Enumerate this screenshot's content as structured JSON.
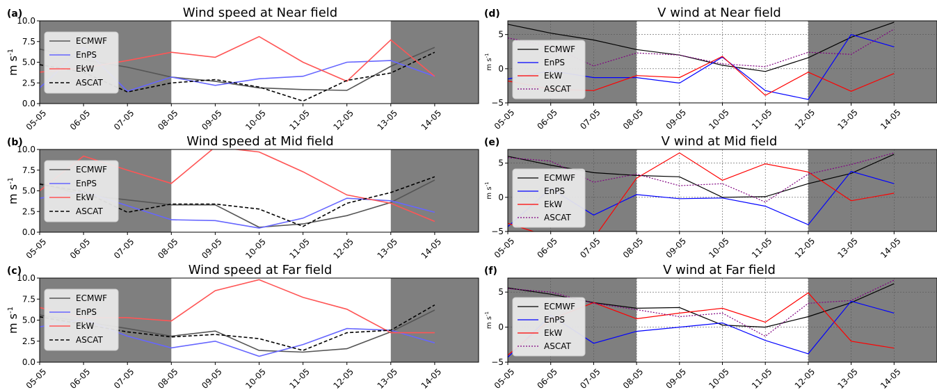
{
  "chart_data": [
    {
      "type": "line",
      "panel_label": "(a)",
      "title": "Wind speed at Near field",
      "ylabel_main": "m s",
      "ylabel_sup": "-1",
      "ylabel_style": "large",
      "ylim": [
        0,
        10
      ],
      "yticks": [
        "0.0",
        "2.5",
        "5.0",
        "7.5",
        "10.0"
      ],
      "ytick_values": [
        0,
        2.5,
        5,
        7.5,
        10
      ],
      "categories": [
        "05-05",
        "06-05",
        "07-05",
        "08-05",
        "09-05",
        "10-05",
        "11-05",
        "12-05",
        "13-05",
        "14-05"
      ],
      "shaded_ranges": [
        [
          0,
          3
        ],
        [
          8,
          10
        ]
      ],
      "grid": false,
      "legend_position": "upper-left",
      "series": [
        {
          "name": "ECMWF",
          "color": "#000000",
          "dashed": false,
          "values": [
            6.6,
            5.3,
            4.4,
            3.2,
            2.7,
            1.9,
            1.7,
            1.6,
            4.5,
            6.8
          ]
        },
        {
          "name": "EnPS",
          "color": "#0000ff",
          "dashed": false,
          "values": [
            1.9,
            6.8,
            1.5,
            3.2,
            2.2,
            3.0,
            3.3,
            5.0,
            5.2,
            3.3
          ]
        },
        {
          "name": "EkW",
          "color": "#ff0000",
          "dashed": false,
          "values": [
            3.8,
            4.3,
            5.2,
            6.2,
            5.6,
            8.1,
            5.0,
            2.7,
            7.7,
            3.3
          ]
        },
        {
          "name": "ASCAT",
          "color": "#000000",
          "dashed": true,
          "values": [
            4.7,
            3.8,
            1.4,
            2.5,
            2.9,
            2.0,
            0.3,
            2.8,
            3.7,
            6.2
          ]
        }
      ]
    },
    {
      "type": "line",
      "panel_label": "(b)",
      "title": "Wind speed at Mid field",
      "ylabel_main": "m s",
      "ylabel_sup": "-1",
      "ylabel_style": "large",
      "ylim": [
        0,
        10
      ],
      "yticks": [
        "0.0",
        "2.5",
        "5.0",
        "7.5",
        "10.0"
      ],
      "ytick_values": [
        0,
        2.5,
        5,
        7.5,
        10
      ],
      "categories": [
        "05-05",
        "06-05",
        "07-05",
        "08-05",
        "09-05",
        "10-05",
        "11-05",
        "12-05",
        "13-05",
        "14-05"
      ],
      "shaded_ranges": [
        [
          0,
          3
        ],
        [
          8,
          10
        ]
      ],
      "grid": false,
      "legend_position": "upper-left",
      "series": [
        {
          "name": "ECMWF",
          "color": "#000000",
          "dashed": false,
          "values": [
            5.9,
            4.5,
            3.9,
            3.3,
            3.3,
            0.6,
            1.0,
            2.0,
            3.6,
            6.3
          ]
        },
        {
          "name": "EnPS",
          "color": "#0000ff",
          "dashed": false,
          "values": [
            4.1,
            4.9,
            3.2,
            1.5,
            1.4,
            0.5,
            1.7,
            4.1,
            3.8,
            2.4
          ]
        },
        {
          "name": "EkW",
          "color": "#ff0000",
          "dashed": false,
          "values": [
            5.0,
            9.2,
            7.5,
            5.9,
            10.3,
            9.7,
            7.3,
            4.5,
            3.5,
            1.3
          ]
        },
        {
          "name": "ASCAT",
          "color": "#000000",
          "dashed": true,
          "values": [
            5.8,
            4.9,
            2.4,
            3.4,
            3.4,
            2.8,
            0.7,
            3.5,
            4.8,
            6.7
          ]
        }
      ]
    },
    {
      "type": "line",
      "panel_label": "(c)",
      "title": "Wind speed at Far field",
      "ylabel_main": "m s",
      "ylabel_sup": "-1",
      "ylabel_style": "large",
      "ylim": [
        0,
        10
      ],
      "yticks": [
        "0.0",
        "2.5",
        "5.0",
        "7.5",
        "10.0"
      ],
      "ytick_values": [
        0,
        2.5,
        5,
        7.5,
        10
      ],
      "categories": [
        "05-05",
        "06-05",
        "07-05",
        "08-05",
        "09-05",
        "10-05",
        "11-05",
        "12-05",
        "13-05",
        "14-05"
      ],
      "shaded_ranges": [
        [
          0,
          3
        ],
        [
          8,
          10
        ]
      ],
      "grid": false,
      "legend_position": "upper-left",
      "series": [
        {
          "name": "ECMWF",
          "color": "#000000",
          "dashed": false,
          "values": [
            5.6,
            4.8,
            4.0,
            3.1,
            3.7,
            1.4,
            1.2,
            1.6,
            3.6,
            6.2
          ]
        },
        {
          "name": "EnPS",
          "color": "#0000ff",
          "dashed": false,
          "values": [
            4.2,
            5.1,
            3.1,
            1.7,
            2.5,
            0.7,
            2.1,
            4.0,
            3.8,
            2.3
          ]
        },
        {
          "name": "EkW",
          "color": "#ff0000",
          "dashed": false,
          "values": [
            6.5,
            5.3,
            5.3,
            4.9,
            8.5,
            9.8,
            7.7,
            6.3,
            3.5,
            3.5
          ]
        },
        {
          "name": "ASCAT",
          "color": "#000000",
          "dashed": true,
          "values": [
            5.4,
            4.5,
            3.6,
            3.0,
            3.3,
            2.8,
            1.4,
            3.5,
            3.8,
            6.8
          ]
        }
      ]
    },
    {
      "type": "line",
      "panel_label": "(d)",
      "title": "V wind at Near field",
      "ylabel_main": "m s",
      "ylabel_sup": "-1",
      "ylabel_style": "small",
      "ylim": [
        -5,
        7
      ],
      "yticks": [
        "−5",
        "0",
        "5"
      ],
      "ytick_values": [
        -5,
        0,
        5
      ],
      "categories": [
        "05-05",
        "06-05",
        "07-05",
        "08-05",
        "09-05",
        "10-05",
        "11-05",
        "12-05",
        "13-05",
        "14-05"
      ],
      "shaded_ranges": [
        [
          0,
          3
        ],
        [
          7,
          10
        ]
      ],
      "grid": true,
      "legend_position": "upper-left",
      "series": [
        {
          "name": "ECMWF",
          "color": "#000000",
          "dashed": false,
          "values": [
            6.5,
            5.2,
            4.2,
            2.8,
            2.0,
            0.5,
            -0.4,
            1.6,
            4.6,
            6.8
          ]
        },
        {
          "name": "EnPS",
          "color": "#0000ff",
          "dashed": false,
          "values": [
            -1.5,
            -0.3,
            -1.3,
            -1.3,
            -2.1,
            1.7,
            -3.2,
            -4.5,
            5.0,
            3.2
          ]
        },
        {
          "name": "EkW",
          "color": "#ff0000",
          "dashed": false,
          "values": [
            -1.8,
            -3.0,
            -3.2,
            -1.0,
            -1.3,
            1.8,
            -3.9,
            -0.5,
            -3.3,
            -0.7
          ]
        },
        {
          "name": "ASCAT",
          "color": "#800080",
          "dashed": true,
          "values": [
            4.5,
            3.3,
            0.4,
            2.3,
            2.0,
            0.7,
            0.3,
            2.4,
            2.1,
            5.8
          ]
        }
      ]
    },
    {
      "type": "line",
      "panel_label": "(e)",
      "title": "V wind at Mid field",
      "ylabel_main": "m s",
      "ylabel_sup": "-1",
      "ylabel_style": "small",
      "ylim": [
        -5,
        7
      ],
      "yticks": [
        "−5",
        "0",
        "5"
      ],
      "ytick_values": [
        -5,
        0,
        5
      ],
      "categories": [
        "05-05",
        "06-05",
        "07-05",
        "08-05",
        "09-05",
        "10-05",
        "11-05",
        "12-05",
        "13-05",
        "14-05"
      ],
      "shaded_ranges": [
        [
          0,
          3
        ],
        [
          7,
          10
        ]
      ],
      "grid": true,
      "legend_position": "upper-left",
      "series": [
        {
          "name": "ECMWF",
          "color": "#000000",
          "dashed": false,
          "values": [
            6.0,
            4.7,
            3.6,
            3.2,
            3.0,
            0.0,
            0.1,
            2.0,
            3.5,
            6.3
          ]
        },
        {
          "name": "EnPS",
          "color": "#0000ff",
          "dashed": false,
          "values": [
            -4.3,
            1.3,
            -2.6,
            0.4,
            -0.2,
            -0.1,
            -1.3,
            -4.0,
            3.8,
            2.0
          ]
        },
        {
          "name": "EkW",
          "color": "#ff0000",
          "dashed": false,
          "values": [
            -3.8,
            -5.8,
            -6.0,
            2.8,
            6.5,
            2.5,
            4.9,
            3.7,
            -0.5,
            0.6
          ]
        },
        {
          "name": "ASCAT",
          "color": "#800080",
          "dashed": true,
          "values": [
            5.8,
            5.3,
            2.2,
            3.4,
            1.7,
            2.0,
            -0.7,
            3.4,
            4.8,
            6.5
          ]
        }
      ]
    },
    {
      "type": "line",
      "panel_label": "(f)",
      "title": "V wind at Far field",
      "ylabel_main": "m s",
      "ylabel_sup": "-1",
      "ylabel_style": "small",
      "ylim": [
        -5,
        7
      ],
      "yticks": [
        "−5",
        "0",
        "5"
      ],
      "ytick_values": [
        -5,
        0,
        5
      ],
      "categories": [
        "05-05",
        "06-05",
        "07-05",
        "08-05",
        "09-05",
        "10-05",
        "11-05",
        "12-05",
        "13-05",
        "14-05"
      ],
      "shaded_ranges": [
        [
          0,
          3
        ],
        [
          7,
          10
        ]
      ],
      "grid": true,
      "legend_position": "upper-left",
      "series": [
        {
          "name": "ECMWF",
          "color": "#000000",
          "dashed": false,
          "values": [
            5.6,
            4.7,
            3.5,
            2.7,
            2.8,
            0.3,
            0.0,
            1.5,
            3.5,
            6.2
          ]
        },
        {
          "name": "EnPS",
          "color": "#0000ff",
          "dashed": false,
          "values": [
            -4.3,
            1.7,
            -2.3,
            -0.6,
            0.0,
            0.6,
            -1.9,
            -3.8,
            3.7,
            2.0
          ]
        },
        {
          "name": "EkW",
          "color": "#ff0000",
          "dashed": false,
          "values": [
            -4.0,
            1.1,
            3.5,
            1.2,
            2.0,
            2.7,
            0.7,
            4.9,
            -2.0,
            -3.0
          ]
        },
        {
          "name": "ASCAT",
          "color": "#800080",
          "dashed": true,
          "values": [
            5.5,
            5.0,
            3.4,
            2.5,
            1.5,
            2.0,
            -1.3,
            3.4,
            3.8,
            6.7
          ]
        }
      ]
    }
  ]
}
